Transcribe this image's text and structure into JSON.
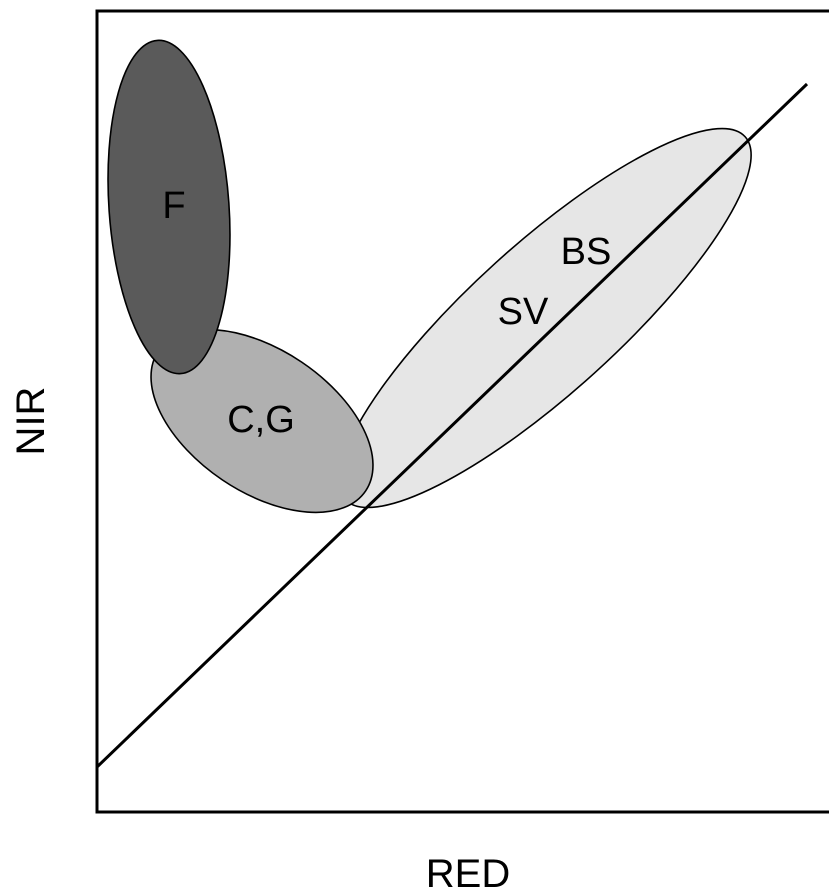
{
  "axes": {
    "x_label": "RED",
    "y_label": "NIR"
  },
  "regions": {
    "forest": {
      "label": "F",
      "fill": "#5a5a5a"
    },
    "crop_grass": {
      "label": "C,G",
      "fill": "#b0b0b0"
    },
    "soil_vegetation": {
      "label": "SV",
      "fill": "#e6e6e6"
    }
  },
  "soil_line": {
    "label": "BS"
  },
  "colors": {
    "frame": "#000000",
    "background": "#ffffff"
  }
}
